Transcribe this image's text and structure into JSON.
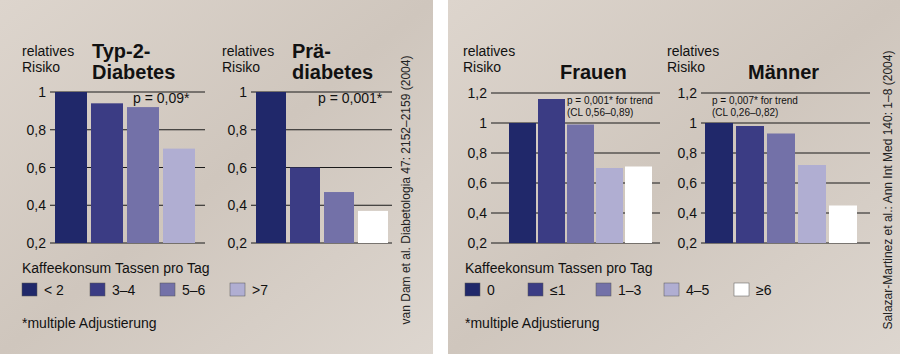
{
  "panels": [
    {
      "legend_title": "Kaffeekonsum Tassen pro Tag",
      "footnote": "*multiple Adjustierung",
      "source": "van Dam et al. Diabetologia 47: 2152–2159 (2004)"
    },
    {
      "legend_title": "Kaffeekonsum Tassen pro Tag",
      "footnote": "*multiple Adjustierung",
      "source": "Salazar-Martinez et al.: Ann Int Med 140: 1–8 (2004)"
    }
  ],
  "chart_data": [
    {
      "type": "bar",
      "title": "Typ-2-\nDiabetes",
      "y_label": "relatives\nRisiko",
      "annotation": "p = 0,09*",
      "categories": [
        "< 2",
        "3–4",
        "5–6",
        ">7"
      ],
      "values": [
        1.0,
        0.94,
        0.92,
        0.7
      ],
      "colors": [
        "#20286a",
        "#3b3c84",
        "#7371a8",
        "#b0aed2"
      ],
      "ylim": [
        0.2,
        1
      ],
      "yticks": [
        {
          "value": 0.2,
          "label": "0,2"
        },
        {
          "value": 0.4,
          "label": "0,4"
        },
        {
          "value": 0.6,
          "label": "0,6"
        },
        {
          "value": 0.8,
          "label": "0,8"
        },
        1
      ],
      "grid": true,
      "tick_labels": "y",
      "legend": "bottom"
    },
    {
      "type": "bar",
      "title": "Prä-\ndiabetes",
      "y_label": "relatives\nRisiko",
      "annotation": "p = 0,001*",
      "categories": [
        "< 2",
        "3–4",
        "5–6",
        ">7"
      ],
      "values": [
        1.0,
        0.6,
        0.47,
        0.37
      ],
      "colors": [
        "#20286a",
        "#3b3c84",
        "#7371a8",
        "#ffffff"
      ],
      "ylim": [
        0.2,
        1
      ],
      "yticks": [
        {
          "value": 0.2,
          "label": "0,2"
        },
        {
          "value": 0.4,
          "label": "0,4"
        },
        {
          "value": 0.6,
          "label": "0,6"
        },
        {
          "value": 0.8,
          "label": "0,8"
        },
        1
      ],
      "grid": true,
      "tick_labels": "y"
    },
    {
      "type": "bar",
      "title": "Frauen",
      "y_label": "relatives\nRisiko",
      "annotation": "p = 0,001* for trend\n(CL 0,56–0,89)",
      "categories": [
        "0",
        "≤1",
        "1–3",
        "4–5",
        "≥6"
      ],
      "values": [
        1.0,
        1.16,
        0.99,
        0.7,
        0.71
      ],
      "colors": [
        "#20286a",
        "#3b3c84",
        "#7371a8",
        "#b0aed2",
        "#ffffff"
      ],
      "ylim": [
        0.2,
        1.2
      ],
      "yticks": [
        {
          "value": 0.2,
          "label": "0,2"
        },
        {
          "value": 0.4,
          "label": "0,4"
        },
        {
          "value": 0.6,
          "label": "0,6"
        },
        {
          "value": 0.8,
          "label": "0,8"
        },
        1,
        {
          "value": 1.2,
          "label": "1,2"
        }
      ],
      "grid": true,
      "tick_labels": "y",
      "legend": "bottom"
    },
    {
      "type": "bar",
      "title": "Männer",
      "y_label": "relatives\nRisiko",
      "annotation": "p = 0,007* for trend\n(CL 0,26–0,82)",
      "categories": [
        "0",
        "≤1",
        "1–3",
        "4–5",
        "≥6"
      ],
      "values": [
        1.0,
        0.98,
        0.93,
        0.72,
        0.45
      ],
      "colors": [
        "#20286a",
        "#3b3c84",
        "#7371a8",
        "#b0aed2",
        "#ffffff"
      ],
      "ylim": [
        0.2,
        1.2
      ],
      "yticks": [
        {
          "value": 0.2,
          "label": "0,2"
        },
        {
          "value": 0.4,
          "label": "0,4"
        },
        {
          "value": 0.6,
          "label": "0,6"
        },
        {
          "value": 0.8,
          "label": "0,8"
        },
        1,
        {
          "value": 1.2,
          "label": "1,2"
        }
      ],
      "grid": true,
      "tick_labels": "y"
    }
  ]
}
